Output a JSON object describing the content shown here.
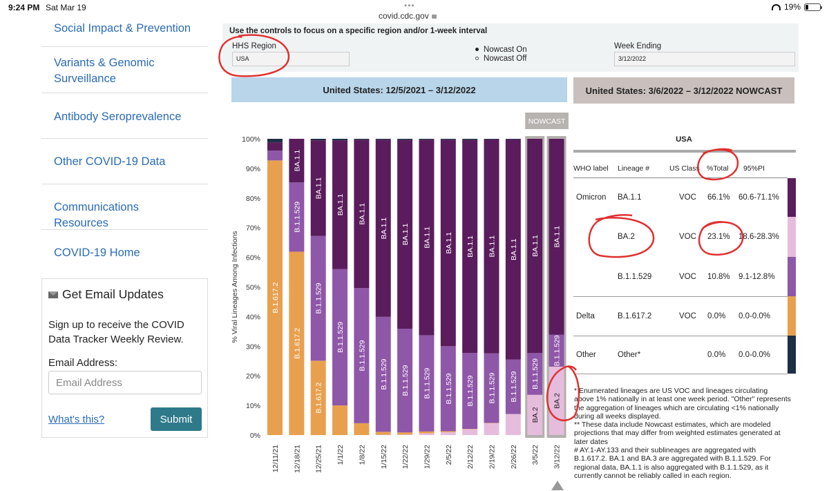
{
  "statusbar": {
    "time": "9:24 PM",
    "date": "Sat Mar 19",
    "url": "covid.cdc.gov",
    "battery": "19%",
    "tab_dots": "•••"
  },
  "sidebar": {
    "items": [
      {
        "label": "Social Impact & Prevention"
      },
      {
        "label": "Variants & Genomic Surveillance"
      },
      {
        "label": "Antibody Seroprevalence"
      },
      {
        "label": "Other COVID-19 Data"
      },
      {
        "label": "Communications Resources"
      },
      {
        "label": "COVID-19 Home"
      }
    ]
  },
  "email": {
    "title": "Get Email Updates",
    "description": "Sign up to receive the COVID Data Tracker Weekly Review.",
    "label": "Email Address:",
    "placeholder": "Email Address",
    "whats_this": "What's this?",
    "submit": "Submit"
  },
  "controls": {
    "title": "Use the controls to focus on a specific region and/or 1-week interval",
    "hhs_label": "HHS Region",
    "hhs_value": "USA",
    "nowcast_on": "Nowcast On",
    "nowcast_off": "Nowcast Off",
    "nowcast_selected": "on",
    "week_label": "Week Ending",
    "week_value": "3/12/2022"
  },
  "banners": {
    "left": "United States: 12/5/2021 – 3/12/2022",
    "right": "United States: 3/6/2022 – 3/12/2022 NOWCAST"
  },
  "chart_data": {
    "type": "bar",
    "stacked": true,
    "ylabel": "% Viral Lineages Among Infections",
    "yticks": [
      "0%",
      "10%",
      "20%",
      "30%",
      "40%",
      "50%",
      "60%",
      "70%",
      "80%",
      "90%",
      "100%"
    ],
    "ylim": [
      0,
      100
    ],
    "nowcast_label": "NOWCAST",
    "nowcast_categories": [
      "3/5/22",
      "3/12/22"
    ],
    "categories": [
      "12/11/21",
      "12/18/21",
      "12/25/21",
      "1/1/22",
      "1/8/22",
      "1/15/22",
      "1/22/22",
      "1/29/22",
      "2/5/22",
      "2/12/22",
      "2/19/22",
      "2/26/22",
      "3/5/22",
      "3/12/22"
    ],
    "series": [
      {
        "name": "BA.2",
        "color": "#e6bcdc",
        "values": [
          0,
          0,
          0,
          0,
          0,
          0.1,
          0.2,
          0.6,
          1.0,
          2.0,
          4.0,
          7.1,
          13.6,
          23.1
        ],
        "labels": [
          "",
          "",
          "",
          "",
          "",
          "",
          "",
          "",
          "",
          "",
          "",
          "",
          "BA.2",
          "BA.2"
        ]
      },
      {
        "name": "B.1.617.2",
        "color": "#e8a04f",
        "values": [
          92.7,
          61.9,
          25.1,
          10.0,
          4.0,
          1.0,
          0.7,
          0.6,
          0.3,
          0.1,
          0.1,
          0,
          0,
          0
        ],
        "labels": [
          "B.1.617.2",
          "B.1.617.2",
          "B.1.617.2",
          "",
          "",
          "",
          "",
          "",
          "",
          "",
          "",
          "",
          "",
          ""
        ]
      },
      {
        "name": "B.1.1.529",
        "color": "#8f57a8",
        "values": [
          3.3,
          23.4,
          42.1,
          46.0,
          45.6,
          38.8,
          35.0,
          32.5,
          28.7,
          25.6,
          23.5,
          18.4,
          14.1,
          10.8
        ],
        "labels": [
          "",
          "B.1.1.529",
          "B.1.1.529",
          "B.1.1.529",
          "B.1.1.529",
          "B.1.1.529",
          "B.1.1.529",
          "B.1.1.529",
          "B.1.1.529",
          "B.1.1.529",
          "B.1.1.529",
          "B.1.1.529",
          "B.1.1.529",
          "B.1.1.529"
        ]
      },
      {
        "name": "BA.1.1",
        "color": "#5a1c5c",
        "values": [
          2.8,
          14.7,
          32.3,
          43.5,
          50.1,
          59.8,
          63.7,
          66.0,
          69.7,
          71.9,
          72.2,
          74.3,
          72.3,
          66.1
        ],
        "labels": [
          "",
          "BA.1.1",
          "BA.1.1",
          "BA.1.1",
          "BA.1.1",
          "BA.1.1",
          "BA.1.1",
          "BA.1.1",
          "BA.1.1",
          "BA.1.1",
          "BA.1.1",
          "BA.1.1",
          "BA.1.1",
          "BA.1.1"
        ]
      },
      {
        "name": "Other",
        "color": "#1e2e44",
        "values": [
          1.2,
          0,
          0.5,
          0.5,
          0.3,
          0.3,
          0.4,
          0.3,
          0.3,
          0.4,
          0.2,
          0.2,
          0,
          0
        ],
        "labels": [
          "",
          "",
          "",
          "",
          "",
          "",
          "",
          "",
          "",
          "",
          "",
          "",
          "",
          ""
        ]
      }
    ]
  },
  "table": {
    "region": "USA",
    "headers": [
      "WHO label",
      "Lineage #",
      "US Class",
      "%Total",
      "95%PI"
    ],
    "rows": [
      {
        "who": "Omicron",
        "lineage": "BA.1.1",
        "class": "VOC",
        "total": "66.1%",
        "pi": "60.6-71.1%",
        "color": "#5a1c5c"
      },
      {
        "who": "",
        "lineage": "BA.2",
        "class": "VOC",
        "total": "23.1%",
        "pi": "18.6-28.3%",
        "color": "#e6bcdc"
      },
      {
        "who": "",
        "lineage": "B.1.1.529",
        "class": "VOC",
        "total": "10.8%",
        "pi": "9.1-12.8%",
        "color": "#8f57a8"
      },
      {
        "who": "Delta",
        "lineage": "B.1.617.2",
        "class": "VOC",
        "total": "0.0%",
        "pi": "0.0-0.0%",
        "color": "#e8a04f"
      },
      {
        "who": "Other",
        "lineage": "Other*",
        "class": "",
        "total": "0.0%",
        "pi": "0.0-0.0%",
        "color": "#1e2e44"
      }
    ],
    "footnotes": [
      "*      Enumerated lineages are US VOC and lineages circulating",
      "above 1% nationally in at least one week period. \"Other\" represents",
      "the aggregation of lineages which are circulating <1% nationally",
      "during all weeks displayed.",
      "**     These data include Nowcast estimates, which are modeled",
      "projections that may differ from weighted estimates generated at",
      "later dates",
      "#      AY.1-AY.133 and their sublineages are aggregated with",
      "B.1.617.2. BA.1 and BA.3 are aggregated with B.1.1.529. For",
      "regional data, BA.1.1 is also aggregated with B.1.1.529, as it",
      "currently cannot be reliably called in each region."
    ]
  },
  "annotation_color": "#e03030"
}
